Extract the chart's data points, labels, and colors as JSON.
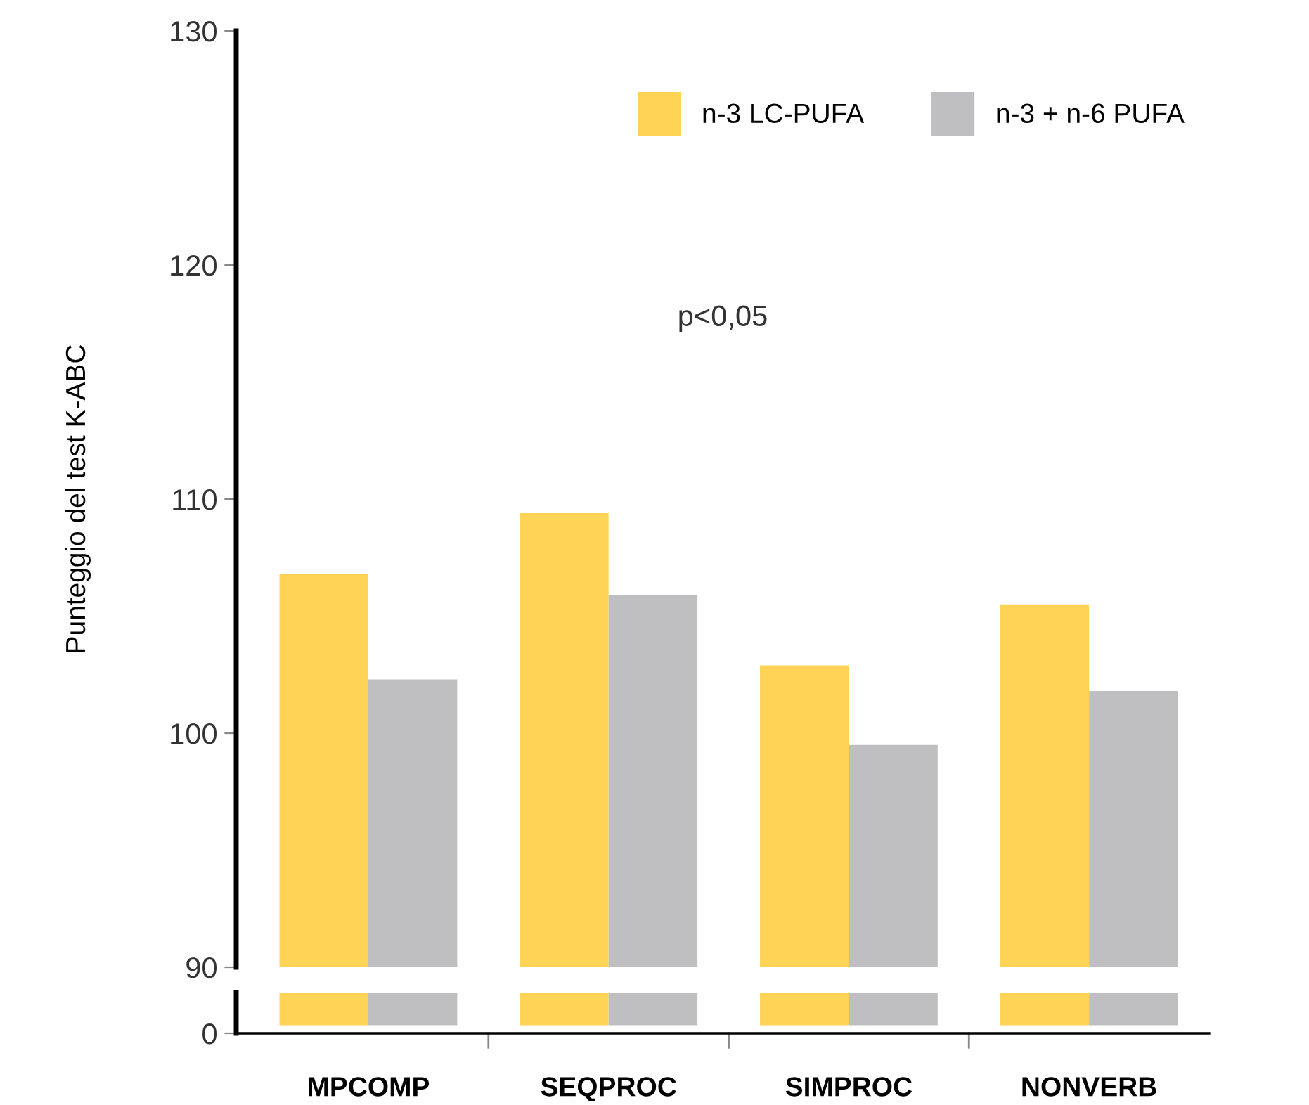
{
  "chart_data": {
    "type": "bar",
    "ylabel": "Punteggio del test K-ABC",
    "categories": [
      "MPCOMP",
      "SEQPROC",
      "SIMPROC",
      "NONVERB"
    ],
    "series": [
      {
        "name": "n-3 LC-PUFA",
        "color": "#ffd456",
        "values": [
          106.8,
          109.4,
          102.9,
          105.5
        ]
      },
      {
        "name": "n-3 + n-6 PUFA",
        "color": "#bfbfc1",
        "values": [
          102.3,
          105.9,
          99.5,
          101.8
        ]
      }
    ],
    "ylim": [
      90,
      130
    ],
    "yticks": [
      90,
      100,
      110,
      120,
      130
    ],
    "annotations": [
      "p<0,05",
      "0"
    ],
    "grid": false,
    "legend": "top right"
  }
}
